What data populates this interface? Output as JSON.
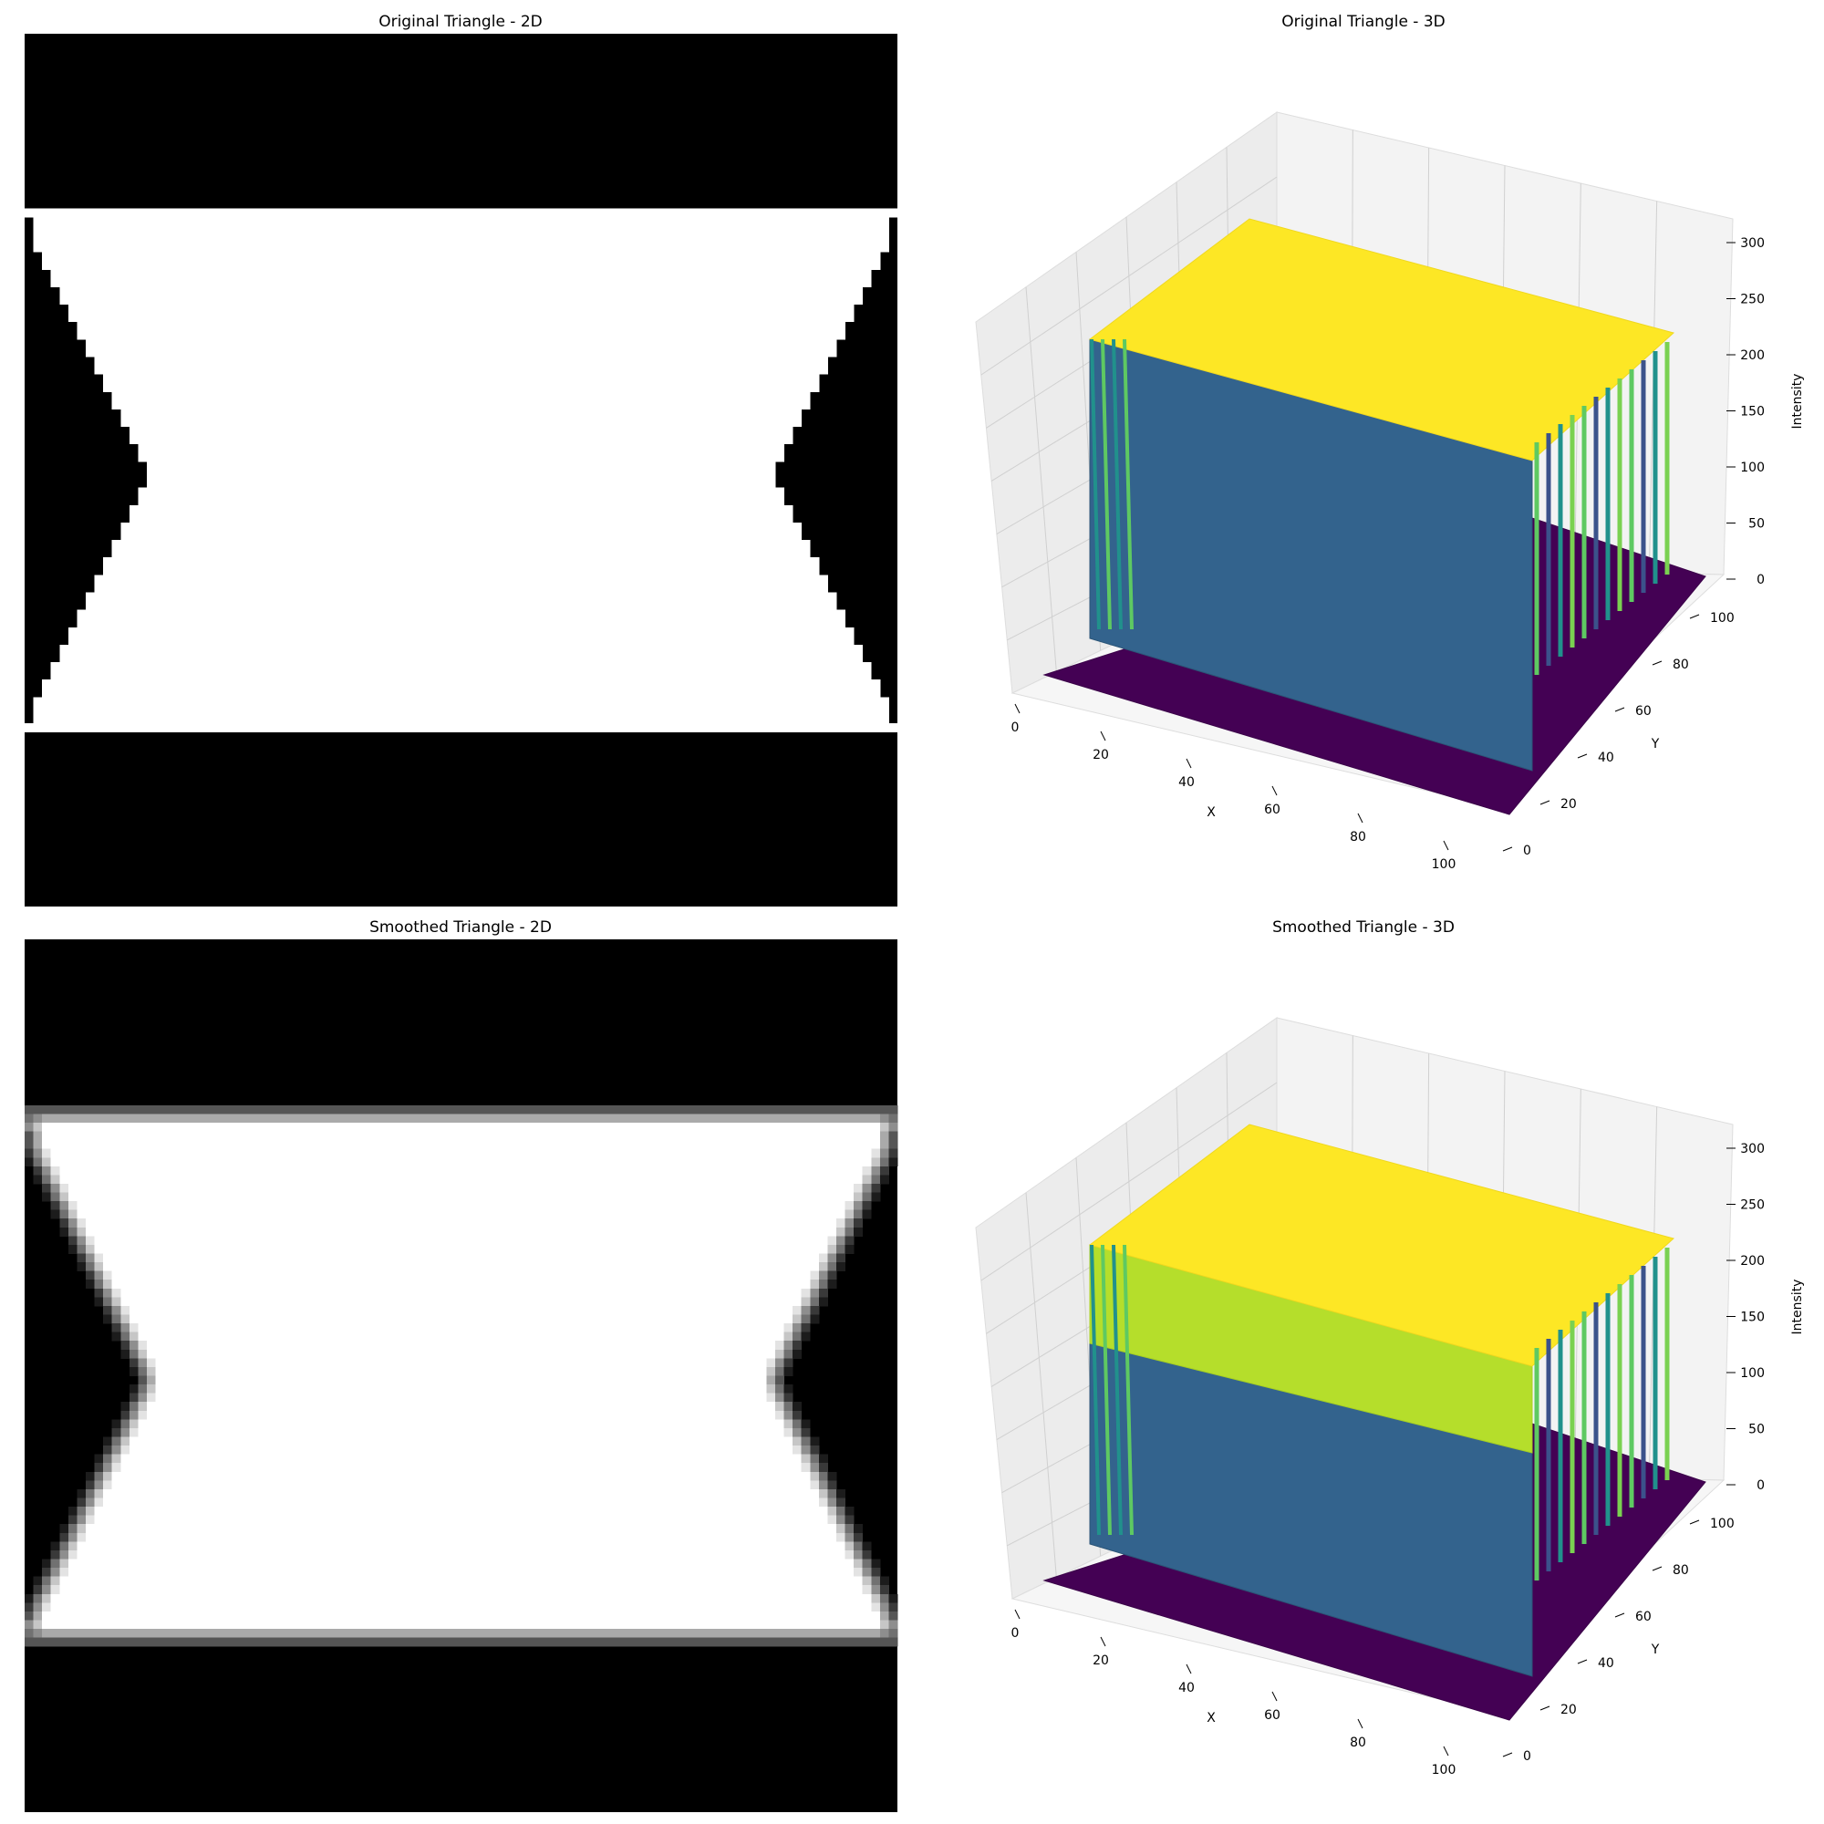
{
  "chart_data": [
    {
      "type": "heatmap",
      "title": "Original Triangle - 2D",
      "colormap": "gray",
      "grid": false,
      "size": [
        100,
        100
      ],
      "shape": {
        "black_top_rows": 20,
        "separator_row": 20,
        "black_bottom_rows": 19,
        "side_wedges": "left and right triangles pointing inward, apex near row 50, ~15 px deep",
        "edges": "hard"
      }
    },
    {
      "type": "surface",
      "title": "Original Triangle - 3D",
      "colormap": "viridis",
      "xlabel": "X",
      "ylabel": "Y",
      "zlabel": "Intensity",
      "xticks": [
        0,
        20,
        40,
        60,
        80,
        100
      ],
      "yticks": [
        0,
        20,
        40,
        60,
        80,
        100
      ],
      "zticks": [
        0,
        50,
        100,
        150,
        200,
        250,
        300
      ],
      "xlim": [
        0,
        100
      ],
      "ylim": [
        0,
        100
      ],
      "zlim": [
        0,
        300
      ],
      "plateau_value": 255,
      "floor_value": 0
    },
    {
      "type": "heatmap",
      "title": "Smoothed Triangle - 2D",
      "colormap": "gray",
      "grid": false,
      "size": [
        100,
        100
      ],
      "shape": {
        "black_top_rows": 20,
        "gray_band_rows": [
          19,
          79
        ],
        "black_bottom_rows": 19,
        "side_wedges": "left and right triangles pointing inward, apex near row 50, ~15 px deep",
        "edges": "blurred"
      }
    },
    {
      "type": "surface",
      "title": "Smoothed Triangle - 3D",
      "colormap": "viridis",
      "xlabel": "X",
      "ylabel": "Y",
      "zlabel": "Intensity",
      "xticks": [
        0,
        20,
        40,
        60,
        80,
        100
      ],
      "yticks": [
        0,
        20,
        40,
        60,
        80,
        100
      ],
      "zticks": [
        0,
        50,
        100,
        150,
        200,
        250,
        300
      ],
      "xlim": [
        0,
        100
      ],
      "ylim": [
        0,
        100
      ],
      "zlim": [
        0,
        300
      ],
      "plateau_value": 255,
      "floor_value": 0
    }
  ]
}
